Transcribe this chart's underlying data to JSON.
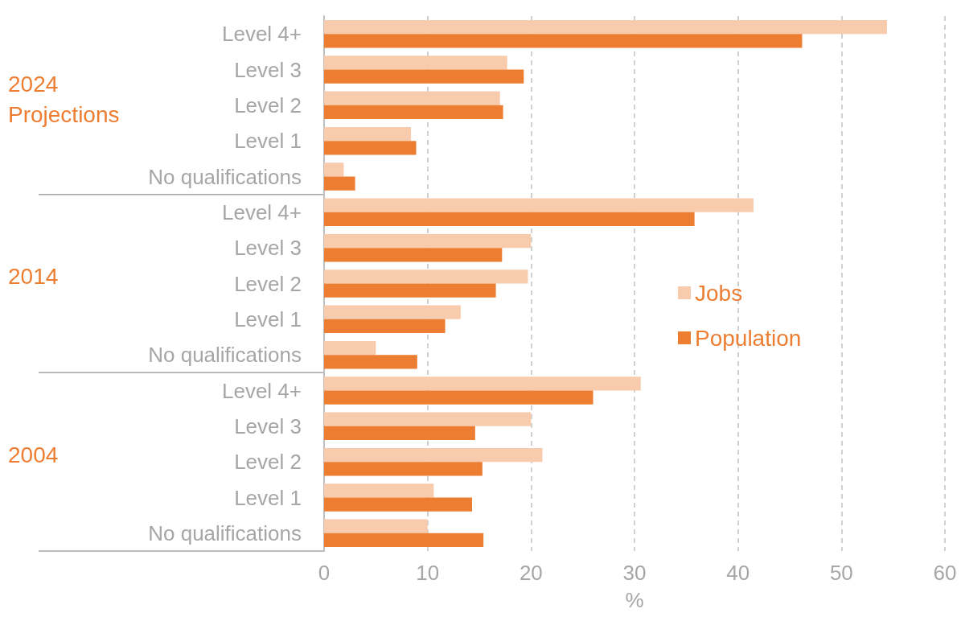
{
  "chart_data": {
    "type": "bar",
    "orientation": "horizontal",
    "xlabel": "%",
    "categories": [
      "Level 4+",
      "Level 3",
      "Level 2",
      "Level 1",
      "No qualifications",
      "Level 4+",
      "Level 3",
      "Level 2",
      "Level 1",
      "No qualifications",
      "Level 4+",
      "Level 3",
      "Level 2",
      "Level 1",
      "No qualifications"
    ],
    "series": [
      {
        "name": "Jobs",
        "color": "#f8cbad",
        "values": [
          54.4,
          17.7,
          17.0,
          8.4,
          1.9,
          41.5,
          20.0,
          19.7,
          13.2,
          5.0,
          30.6,
          20.0,
          21.1,
          10.6,
          10.0
        ]
      },
      {
        "name": "Population",
        "color": "#ed7d31",
        "values": [
          46.2,
          19.3,
          17.3,
          8.9,
          3.0,
          35.8,
          17.2,
          16.6,
          11.7,
          9.0,
          26.0,
          14.6,
          15.3,
          14.3,
          15.4
        ]
      }
    ],
    "annotations": [
      "2024 Projections",
      "2014",
      "2004"
    ],
    "xlim": [
      0,
      60
    ],
    "xticks": [
      0,
      10,
      20,
      30,
      40,
      50,
      60
    ],
    "grid": "x",
    "legend": "right"
  }
}
